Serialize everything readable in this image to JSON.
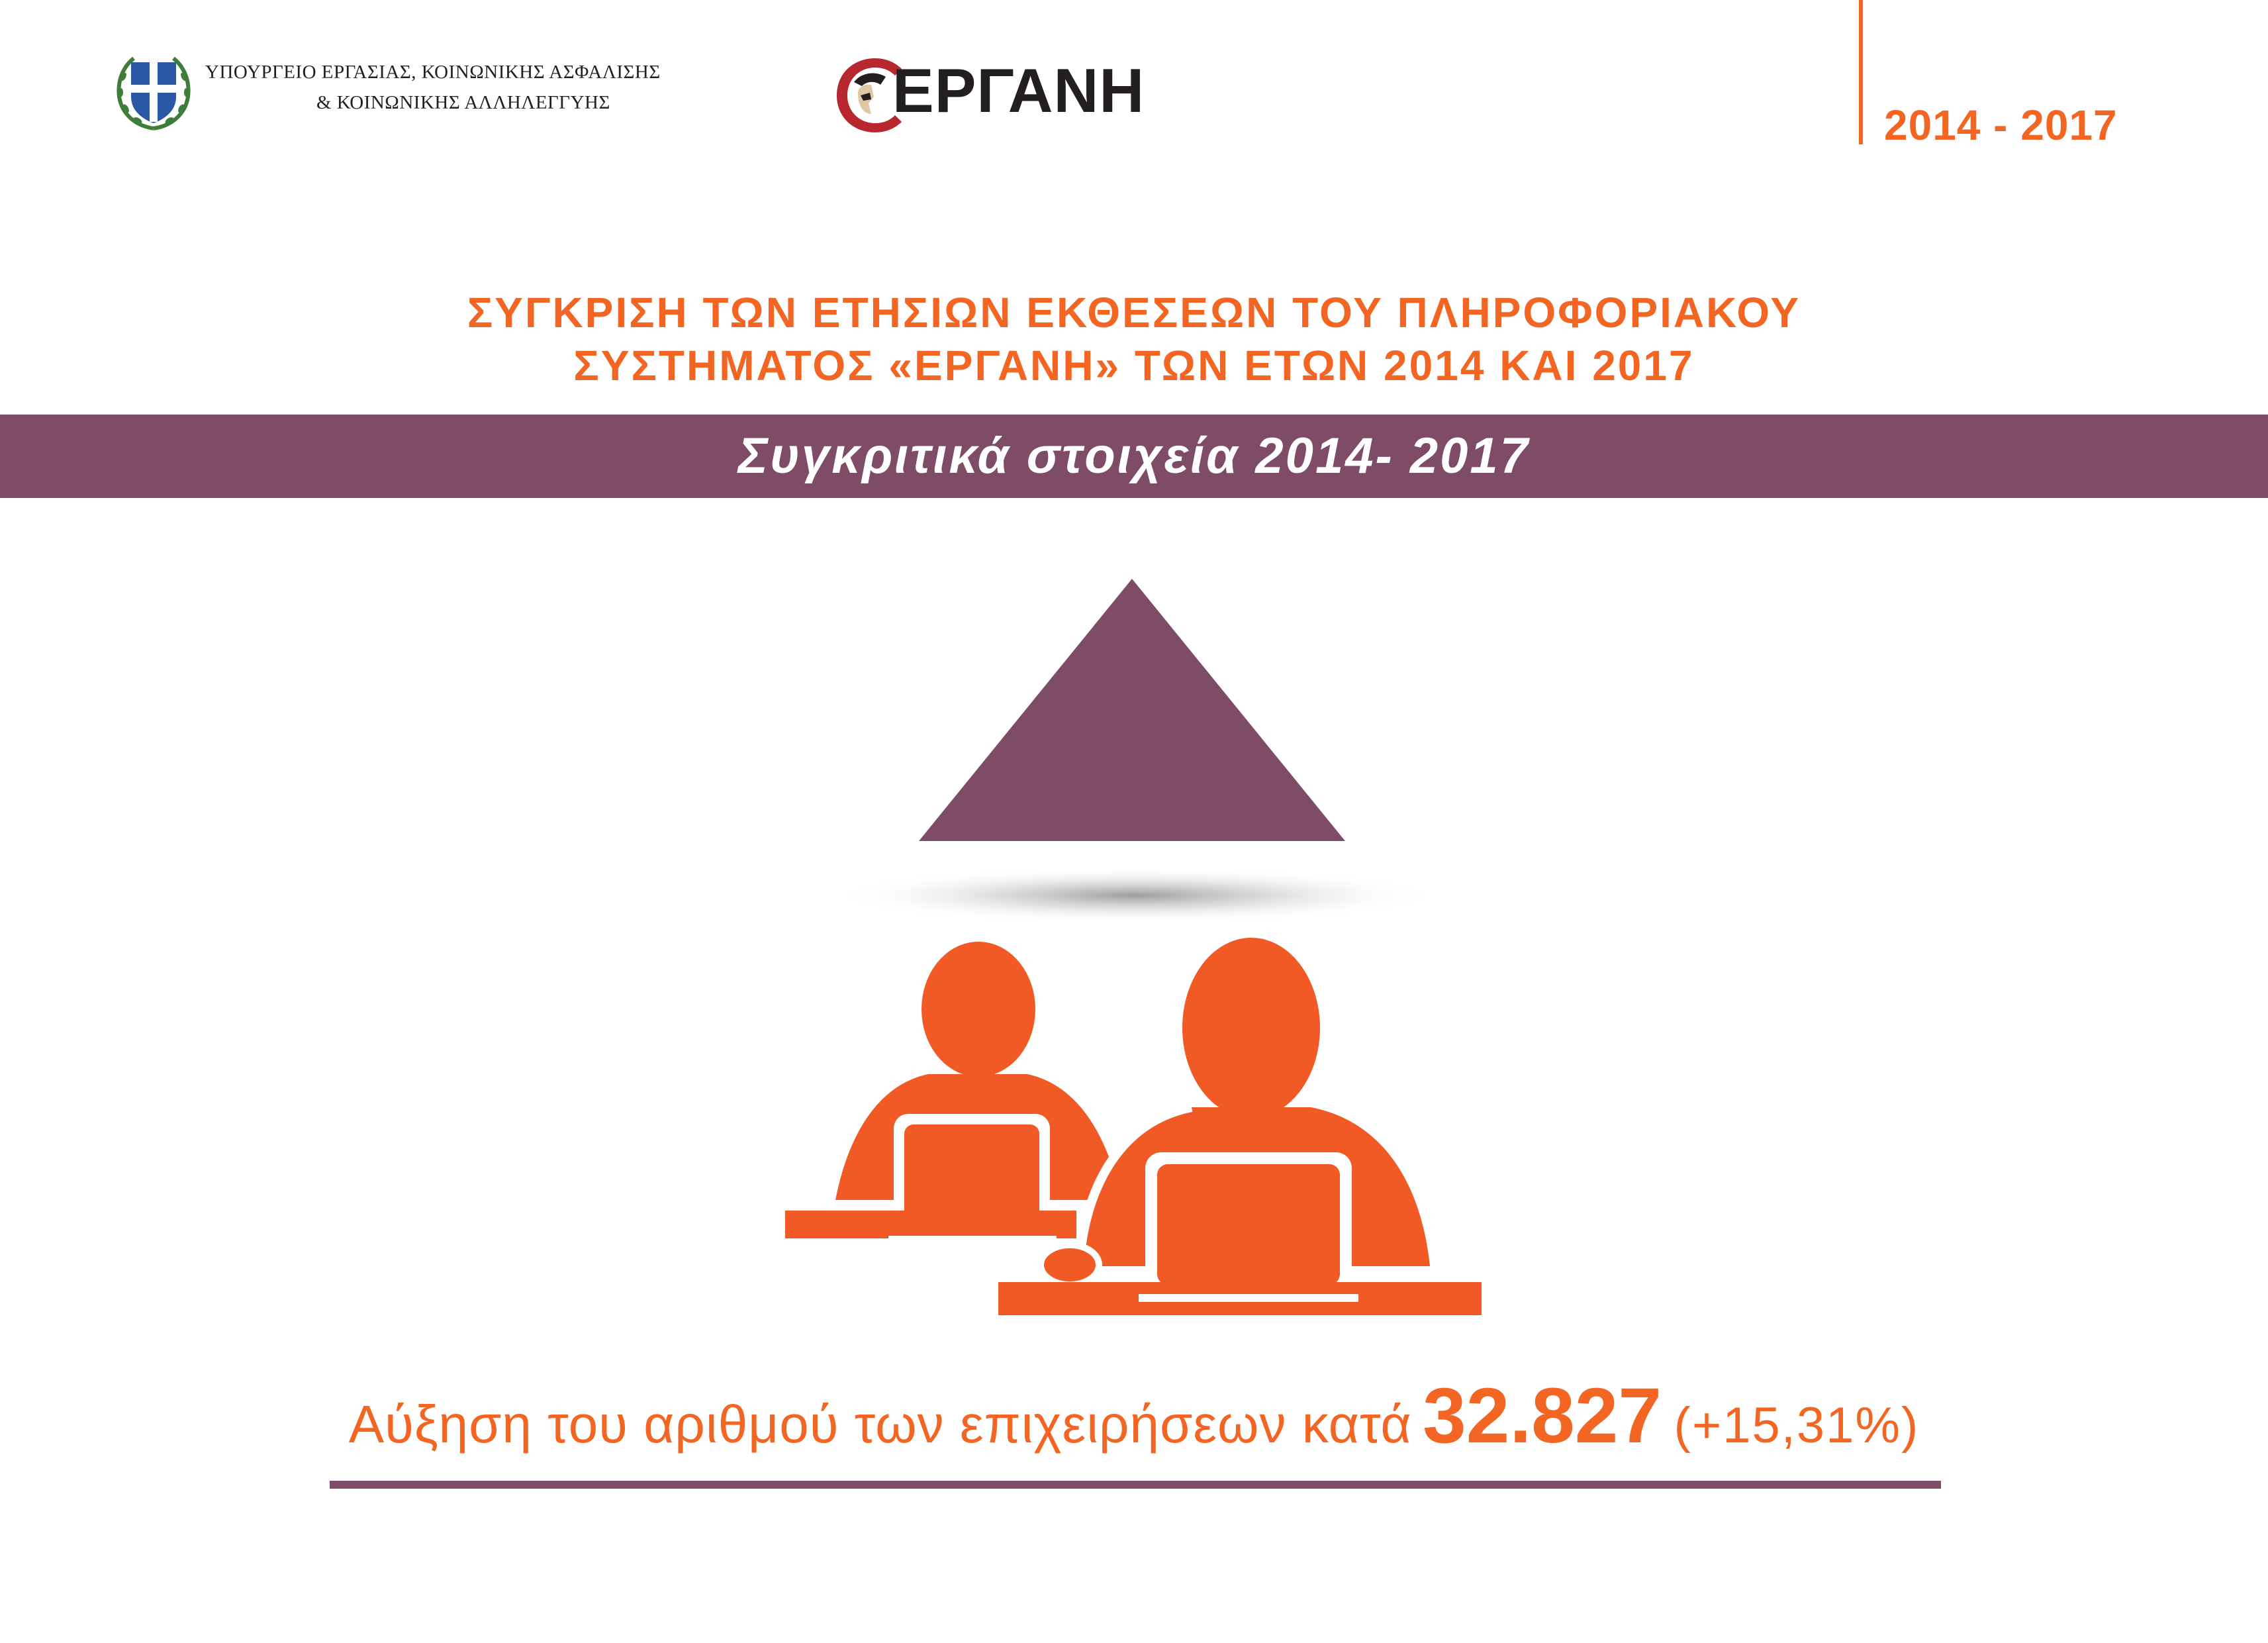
{
  "header": {
    "ministry_line1": "ΥΠΟΥΡΓΕΙΟ ΕΡΓΑΣΙΑΣ, ΚΟΙΝΩΝΙΚΗΣ ΑΣΦΑΛΙΣΗΣ",
    "ministry_line2": "& ΚΟΙΝΩΝΙΚΗΣ ΑΛΛΗΛΕΓΓΥΗΣ",
    "logo_text": "ΕΡΓΑΝΗ",
    "years": "2014 - 2017"
  },
  "title": {
    "line1": "ΣΥΓΚΡΙΣΗ ΤΩΝ ΕΤΗΣΙΩΝ ΕΚΘΕΣΕΩΝ ΤΟΥ ΠΛΗΡΟΦΟΡΙΑΚΟΥ",
    "line2": "ΣΥΣΤΗΜΑΤΟΣ «ΕΡΓΑΝΗ» ΤΩΝ ΕΤΩΝ 2014 ΚΑΙ 2017"
  },
  "band": {
    "label": "Συγκριτικά στοιχεία 2014- 2017"
  },
  "icons": {
    "trend": "up-triangle-icon",
    "people": "people-at-laptops-icon",
    "emblem": "greek-coat-of-arms-icon",
    "logo": "ergani-logo"
  },
  "stat": {
    "description": "Αύξηση του αριθμού των επιχειρήσεων κατά",
    "value": "32.827",
    "change": "(+15,31%)"
  },
  "colors": {
    "accent": "#f26522",
    "band": "#7e4c67",
    "text_dark": "#231f20"
  }
}
